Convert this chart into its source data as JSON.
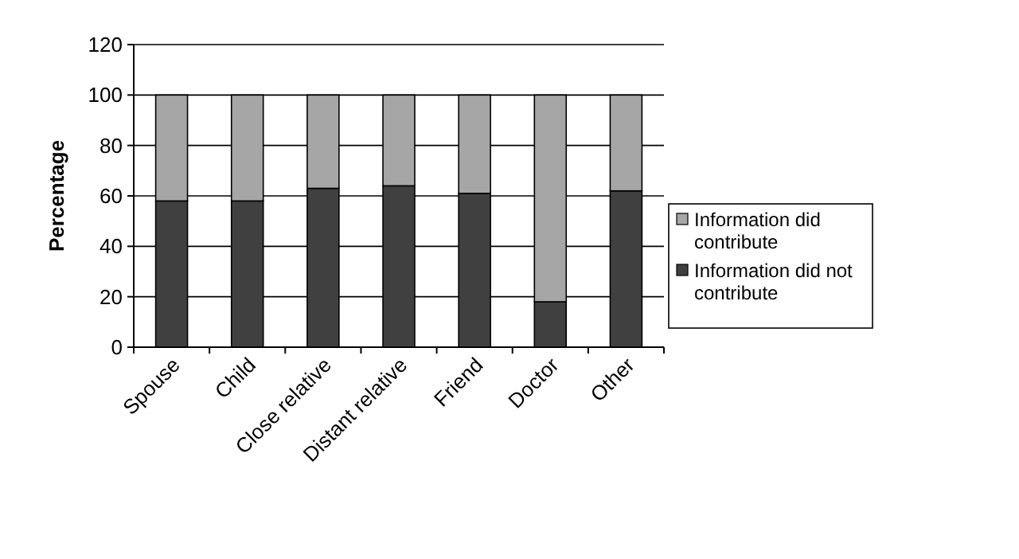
{
  "chart_data": {
    "type": "bar",
    "stacked": true,
    "ylabel": "Percentage",
    "categories": [
      "Spouse",
      "Child",
      "Close relative",
      "Distant relative",
      "Friend",
      "Doctor",
      "Other"
    ],
    "series": [
      {
        "name": "Information did not contribute",
        "color": "#404040",
        "values": [
          58,
          58,
          63,
          64,
          61,
          18,
          62
        ]
      },
      {
        "name": "Information did contribute",
        "color": "#a6a6a6",
        "values": [
          42,
          42,
          37,
          36,
          39,
          82,
          38
        ]
      }
    ],
    "ylim": [
      0,
      120
    ],
    "yticks": [
      0,
      20,
      40,
      60,
      80,
      100,
      120
    ],
    "grid": "y",
    "legend": "right"
  }
}
